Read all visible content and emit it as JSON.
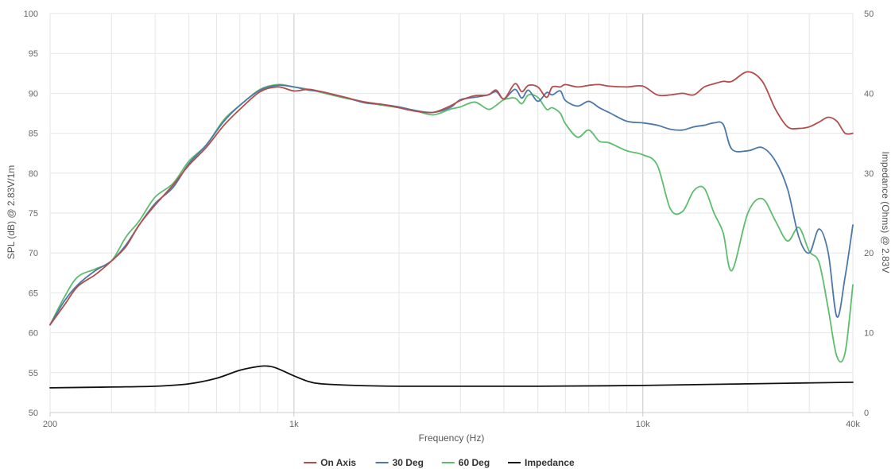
{
  "chart_data": {
    "type": "line",
    "title": "",
    "xlabel": "Frequency (Hz)",
    "ylabel": "SPL (dB) @ 2.83V/1m",
    "y2label": "Impedance (Ohms) @ 2.83V",
    "x_scale": "log",
    "xlim": [
      200,
      40000
    ],
    "ylim": [
      50,
      100
    ],
    "y2lim": [
      0,
      50
    ],
    "grid": true,
    "legend_position": "bottom-center",
    "x_ticks": [
      {
        "value": 200,
        "label": "200"
      },
      {
        "value": 1000,
        "label": "1k"
      },
      {
        "value": 10000,
        "label": "10k"
      },
      {
        "value": 40000,
        "label": "40k"
      }
    ],
    "y_ticks": [
      "50",
      "55",
      "60",
      "65",
      "70",
      "75",
      "80",
      "85",
      "90",
      "95",
      "100"
    ],
    "y2_ticks": [
      "0",
      "10",
      "20",
      "30",
      "40",
      "50"
    ],
    "colors": {
      "on_axis": "#b44c4c",
      "deg30": "#4d79a8",
      "deg60": "#5dbd6e",
      "impedance": "#111111",
      "grid": "#e6e6e6",
      "major_grid": "#d0d0d0"
    },
    "series": [
      {
        "name": "On Axis",
        "axis": "left",
        "x": [
          200,
          220,
          240,
          270,
          300,
          330,
          360,
          400,
          450,
          500,
          560,
          630,
          700,
          800,
          900,
          1000,
          1100,
          1200,
          1400,
          1600,
          1800,
          2000,
          2200,
          2500,
          2800,
          3000,
          3300,
          3600,
          3800,
          4000,
          4300,
          4500,
          4700,
          5000,
          5300,
          5500,
          5800,
          6000,
          6500,
          7000,
          7500,
          8000,
          9000,
          10000,
          11000,
          12000,
          13000,
          14000,
          15000,
          16000,
          17000,
          18000,
          20000,
          22000,
          24000,
          26000,
          28000,
          30000,
          32000,
          34000,
          36000,
          38000,
          40000
        ],
        "values": [
          61,
          63.5,
          65.8,
          67.3,
          69,
          70.8,
          73.5,
          76,
          78.5,
          81,
          83.2,
          86,
          88,
          90.2,
          90.8,
          90.3,
          90.5,
          90.2,
          89.5,
          88.9,
          88.6,
          88.2,
          87.8,
          87.6,
          88.4,
          89.1,
          89.7,
          89.8,
          90.4,
          89.3,
          91.2,
          90.2,
          91,
          90.8,
          89.5,
          90.8,
          90.8,
          91.1,
          90.8,
          91,
          91.1,
          90.9,
          90.8,
          90.9,
          89.8,
          89.8,
          90,
          89.8,
          90.8,
          91.2,
          91.5,
          91.5,
          92.7,
          91.5,
          88,
          85.8,
          85.6,
          85.8,
          86.4,
          87,
          86.5,
          85,
          85
        ]
      },
      {
        "name": "30 Deg",
        "axis": "left",
        "x": [
          200,
          220,
          240,
          270,
          300,
          330,
          360,
          400,
          450,
          500,
          560,
          630,
          700,
          800,
          900,
          1000,
          1100,
          1200,
          1400,
          1600,
          1800,
          2000,
          2200,
          2500,
          2800,
          3000,
          3300,
          3600,
          3800,
          4000,
          4300,
          4500,
          4700,
          5000,
          5300,
          5500,
          5800,
          6000,
          6500,
          7000,
          7500,
          8000,
          9000,
          10000,
          11000,
          12000,
          13000,
          14000,
          15000,
          16000,
          17000,
          18000,
          20000,
          22000,
          24000,
          26000,
          28000,
          30000,
          32000,
          34000,
          36000,
          38000,
          40000
        ],
        "values": [
          61,
          64,
          66,
          67.8,
          69,
          71,
          73.5,
          76.2,
          78.2,
          81.2,
          83.5,
          86.5,
          88.5,
          90.4,
          91,
          90.8,
          90.4,
          90.2,
          89.5,
          88.8,
          88.6,
          88.3,
          87.9,
          87.6,
          88.2,
          89.2,
          89.5,
          89.8,
          90.2,
          89.3,
          90.5,
          89.4,
          90.4,
          89,
          90.1,
          89.8,
          90.3,
          89.1,
          88.4,
          89,
          88.2,
          87.6,
          86.5,
          86.3,
          86,
          85.5,
          85.4,
          85.8,
          86,
          86.3,
          86.1,
          83,
          82.8,
          83.2,
          81.5,
          78,
          72,
          70,
          73,
          70,
          62,
          67,
          73.5
        ]
      },
      {
        "name": "60 Deg",
        "axis": "left",
        "x": [
          200,
          220,
          240,
          270,
          300,
          330,
          360,
          400,
          450,
          500,
          560,
          630,
          700,
          800,
          900,
          1000,
          1100,
          1200,
          1400,
          1600,
          1800,
          2000,
          2200,
          2500,
          2800,
          3000,
          3300,
          3600,
          3800,
          4000,
          4300,
          4500,
          4700,
          5000,
          5300,
          5500,
          5800,
          6000,
          6500,
          7000,
          7500,
          8000,
          9000,
          10000,
          11000,
          12000,
          13000,
          14000,
          15000,
          16000,
          17000,
          18000,
          20000,
          22000,
          24000,
          26000,
          28000,
          30000,
          32000,
          34000,
          36000,
          38000,
          40000
        ],
        "values": [
          61,
          64.5,
          67,
          68,
          69,
          72,
          74,
          77,
          78.7,
          81.5,
          83.5,
          86.7,
          88.5,
          90.5,
          91.1,
          90.8,
          90.5,
          90.1,
          89.4,
          88.9,
          88.5,
          88.2,
          87.9,
          87.3,
          88,
          88.3,
          88.9,
          88,
          88.5,
          89.2,
          89.4,
          88.7,
          89.8,
          89.5,
          88,
          88.2,
          87.5,
          86.2,
          84.5,
          85.4,
          84,
          83.8,
          82.8,
          82.3,
          81,
          75.5,
          75.2,
          77.8,
          78.1,
          75,
          72.5,
          67.8,
          75,
          76.8,
          74,
          71.5,
          73.2,
          70.2,
          68.8,
          63,
          57,
          57.5,
          66
        ]
      },
      {
        "name": "Impedance",
        "axis": "right",
        "x": [
          200,
          300,
          400,
          500,
          600,
          700,
          800,
          850,
          900,
          1000,
          1100,
          1200,
          1500,
          2000,
          3000,
          5000,
          10000,
          20000,
          40000
        ],
        "values": [
          3.1,
          3.2,
          3.3,
          3.6,
          4.3,
          5.3,
          5.8,
          5.8,
          5.5,
          4.6,
          3.9,
          3.6,
          3.4,
          3.3,
          3.3,
          3.3,
          3.4,
          3.6,
          3.8
        ]
      }
    ]
  }
}
